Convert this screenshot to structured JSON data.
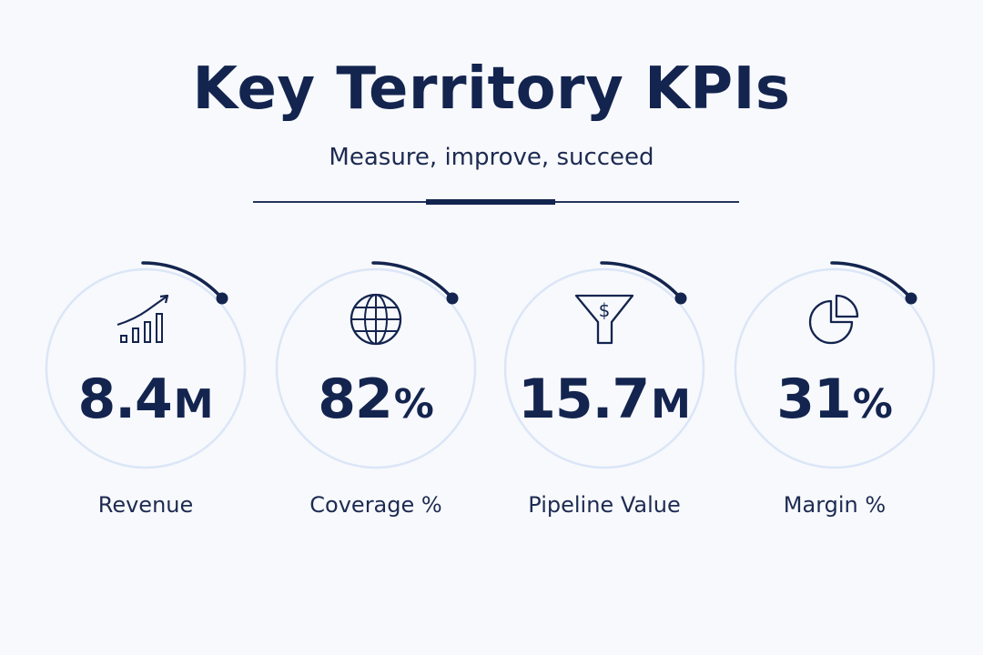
{
  "header": {
    "title": "Key Territory KPIs",
    "subtitle": "Measure, improve, succeed"
  },
  "colors": {
    "navy": "#13244f",
    "ring": "#dbe6f7",
    "background": "#f8f9fc"
  },
  "kpis": [
    {
      "icon": "growth-chart-icon",
      "number": "8.4",
      "unit": "M",
      "label": "Revenue"
    },
    {
      "icon": "globe-icon",
      "number": "82",
      "unit": "%",
      "label": "Coverage %"
    },
    {
      "icon": "dollar-funnel-icon",
      "number": "15.7",
      "unit": "M",
      "label": "Pipeline Value"
    },
    {
      "icon": "pie-chart-icon",
      "number": "31",
      "unit": "%",
      "label": "Margin %"
    }
  ]
}
